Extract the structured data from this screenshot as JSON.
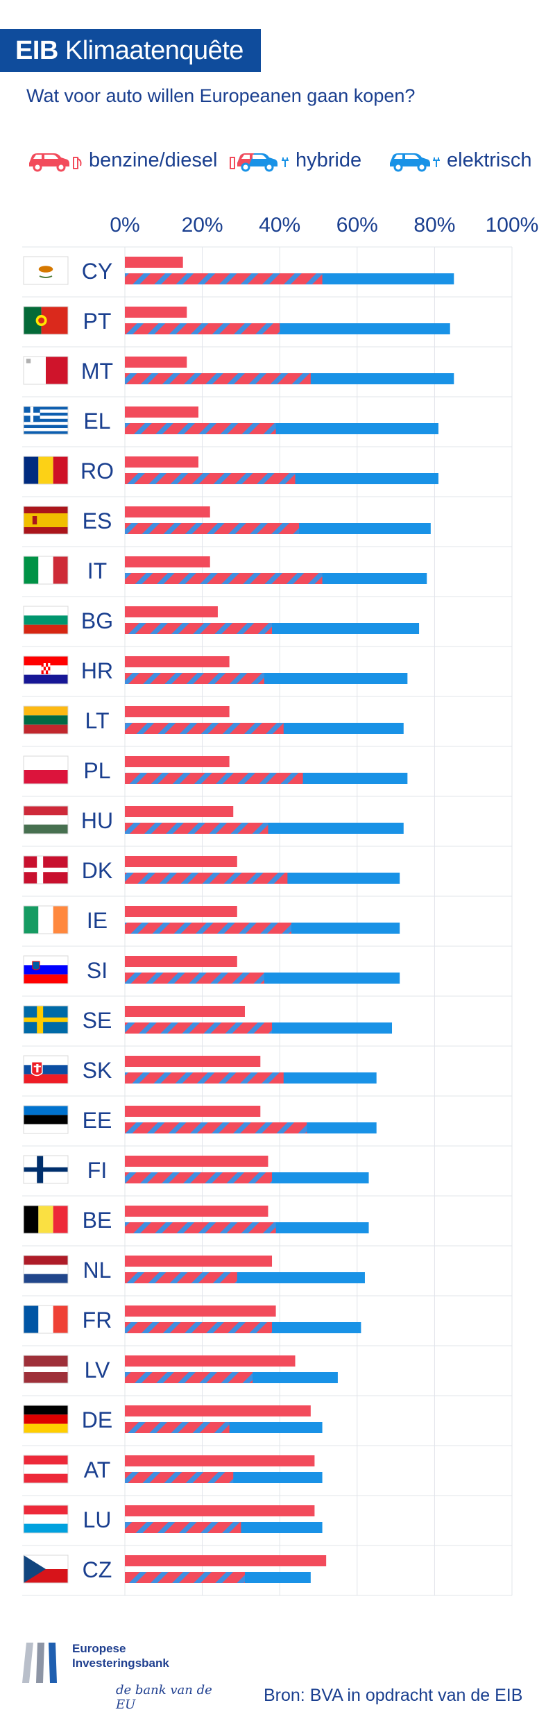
{
  "header": {
    "brand": "EIB",
    "title": "Klimaatenquête"
  },
  "subtitle": "Wat voor auto willen Europeanen gaan kopen?",
  "legend": [
    {
      "label": "benzine/diesel",
      "icon": "red-car-fuel-icon",
      "color": "#f24b5b"
    },
    {
      "label": "hybride",
      "icon": "hybrid-car-icon",
      "color": "#f24b5b"
    },
    {
      "label": "elektrisch",
      "icon": "blue-car-plug-icon",
      "color": "#1992e6"
    }
  ],
  "colors": {
    "petrol": "#f24b5b",
    "electric": "#1992e6",
    "hybrid_stripe_a": "#f24b5b",
    "hybrid_stripe_b": "#1992e6",
    "grid": "#e1e4ea",
    "text": "#1a3f8f"
  },
  "chart_data": {
    "type": "bar",
    "orientation": "horizontal",
    "xlim": [
      0,
      100
    ],
    "ticks": [
      "0%",
      "20%",
      "40%",
      "60%",
      "80%",
      "100%"
    ],
    "grid": true,
    "legend_position": "top",
    "series_names": [
      "benzine/diesel",
      "hybride",
      "elektrisch"
    ],
    "countries": [
      {
        "code": "CY",
        "flag": "cyprus-flag-icon",
        "petrol": 15,
        "hybrid": 51,
        "electric": 85
      },
      {
        "code": "PT",
        "flag": "portugal-flag-icon",
        "petrol": 16,
        "hybrid": 40,
        "electric": 84
      },
      {
        "code": "MT",
        "flag": "malta-flag-icon",
        "petrol": 16,
        "hybrid": 48,
        "electric": 85
      },
      {
        "code": "EL",
        "flag": "greece-flag-icon",
        "petrol": 19,
        "hybrid": 39,
        "electric": 81
      },
      {
        "code": "RO",
        "flag": "romania-flag-icon",
        "petrol": 19,
        "hybrid": 44,
        "electric": 81
      },
      {
        "code": "ES",
        "flag": "spain-flag-icon",
        "petrol": 22,
        "hybrid": 45,
        "electric": 79
      },
      {
        "code": "IT",
        "flag": "italy-flag-icon",
        "petrol": 22,
        "hybrid": 51,
        "electric": 78
      },
      {
        "code": "BG",
        "flag": "bulgaria-flag-icon",
        "petrol": 24,
        "hybrid": 38,
        "electric": 76
      },
      {
        "code": "HR",
        "flag": "croatia-flag-icon",
        "petrol": 27,
        "hybrid": 36,
        "electric": 73
      },
      {
        "code": "LT",
        "flag": "lithuania-flag-icon",
        "petrol": 27,
        "hybrid": 41,
        "electric": 72
      },
      {
        "code": "PL",
        "flag": "poland-flag-icon",
        "petrol": 27,
        "hybrid": 46,
        "electric": 73
      },
      {
        "code": "HU",
        "flag": "hungary-flag-icon",
        "petrol": 28,
        "hybrid": 37,
        "electric": 72
      },
      {
        "code": "DK",
        "flag": "denmark-flag-icon",
        "petrol": 29,
        "hybrid": 42,
        "electric": 71
      },
      {
        "code": "IE",
        "flag": "ireland-flag-icon",
        "petrol": 29,
        "hybrid": 43,
        "electric": 71
      },
      {
        "code": "SI",
        "flag": "slovenia-flag-icon",
        "petrol": 29,
        "hybrid": 36,
        "electric": 71
      },
      {
        "code": "SE",
        "flag": "sweden-flag-icon",
        "petrol": 31,
        "hybrid": 38,
        "electric": 69
      },
      {
        "code": "SK",
        "flag": "slovakia-flag-icon",
        "petrol": 35,
        "hybrid": 41,
        "electric": 65
      },
      {
        "code": "EE",
        "flag": "estonia-flag-icon",
        "petrol": 35,
        "hybrid": 47,
        "electric": 65
      },
      {
        "code": "FI",
        "flag": "finland-flag-icon",
        "petrol": 37,
        "hybrid": 38,
        "electric": 63
      },
      {
        "code": "BE",
        "flag": "belgium-flag-icon",
        "petrol": 37,
        "hybrid": 39,
        "electric": 63
      },
      {
        "code": "NL",
        "flag": "netherlands-flag-icon",
        "petrol": 38,
        "hybrid": 29,
        "electric": 62
      },
      {
        "code": "FR",
        "flag": "france-flag-icon",
        "petrol": 39,
        "hybrid": 38,
        "electric": 61
      },
      {
        "code": "LV",
        "flag": "latvia-flag-icon",
        "petrol": 44,
        "hybrid": 33,
        "electric": 55
      },
      {
        "code": "DE",
        "flag": "germany-flag-icon",
        "petrol": 48,
        "hybrid": 27,
        "electric": 51
      },
      {
        "code": "AT",
        "flag": "austria-flag-icon",
        "petrol": 49,
        "hybrid": 28,
        "electric": 51
      },
      {
        "code": "LU",
        "flag": "luxembourg-flag-icon",
        "petrol": 49,
        "hybrid": 30,
        "electric": 51
      },
      {
        "code": "CZ",
        "flag": "czechia-flag-icon",
        "petrol": 52,
        "hybrid": 31,
        "electric": 48
      }
    ]
  },
  "footer": {
    "logo_line1": "Europese",
    "logo_line2": "Investeringsbank",
    "logo_tagline": "de bank van de EU",
    "source": "Bron: BVA in opdracht van de EIB"
  }
}
